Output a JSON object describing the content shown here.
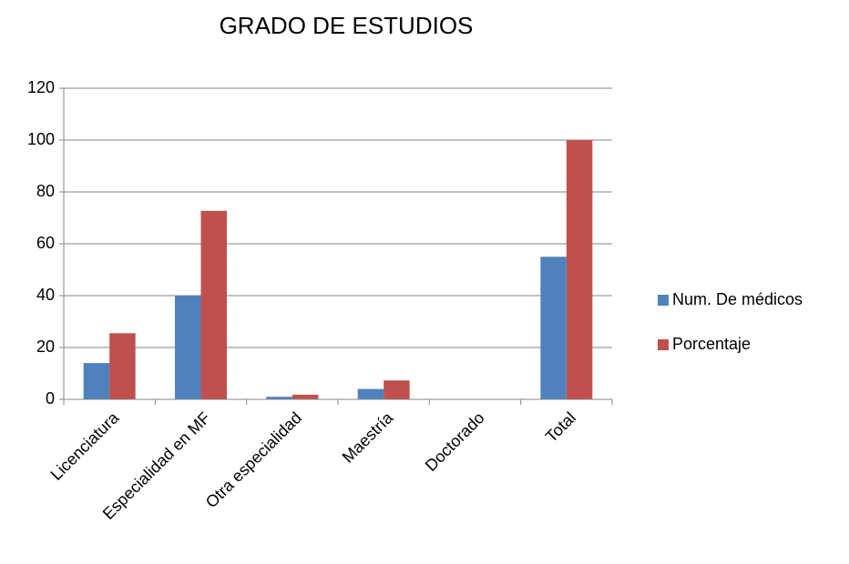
{
  "chart_data": {
    "type": "bar",
    "title": "GRADO DE ESTUDIOS",
    "categories": [
      "Licenciatura",
      "Especialidad en MF",
      "Otra especialidad",
      "Maestría",
      "Doctorado",
      "Total"
    ],
    "series": [
      {
        "name": "Num. De médicos",
        "color": "#4f81bd",
        "values": [
          14,
          40,
          1,
          4,
          0,
          55
        ]
      },
      {
        "name": "Porcentaje",
        "color": "#c0504d",
        "values": [
          25.5,
          72.7,
          1.8,
          7.3,
          0,
          100
        ]
      }
    ],
    "ylim": [
      0,
      120
    ],
    "yticks": [
      0,
      20,
      40,
      60,
      80,
      100,
      120
    ],
    "grid": true,
    "legend": "right"
  }
}
